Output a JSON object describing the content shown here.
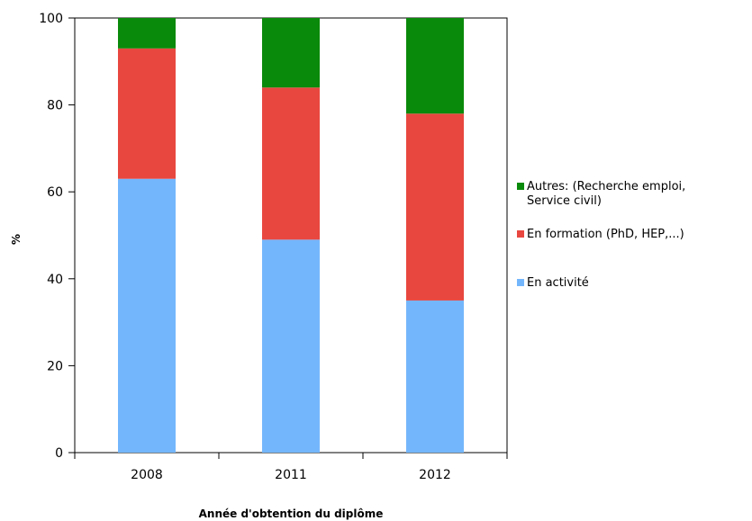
{
  "chart_data": {
    "type": "bar",
    "stacked": true,
    "categories": [
      "2008",
      "2011",
      "2012"
    ],
    "series": [
      {
        "name": "En activité",
        "color": "#74b6fc",
        "values": [
          63,
          49,
          35
        ]
      },
      {
        "name": "En formation (PhD, HEP,...)",
        "color": "#e8473f",
        "values": [
          30,
          35,
          43
        ]
      },
      {
        "name": "Autres: (Recherche emploi, Service civil)",
        "color": "#0a8a0a",
        "values": [
          7,
          16,
          22
        ]
      }
    ],
    "xlabel": "Année d'obtention du diplôme",
    "ylabel": "%",
    "ylim": [
      0,
      100
    ],
    "yticks": [
      "0",
      "20",
      "40",
      "60",
      "80",
      "100"
    ],
    "grid": false,
    "legend_position": "right"
  },
  "legend": [
    {
      "lines": [
        "Autres: (Recherche emploi,",
        "Service civil)"
      ],
      "color": "#0a8a0a"
    },
    {
      "lines": [
        "En formation (PhD, HEP,...)"
      ],
      "color": "#e8473f"
    },
    {
      "lines": [
        "En activité"
      ],
      "color": "#74b6fc"
    }
  ]
}
